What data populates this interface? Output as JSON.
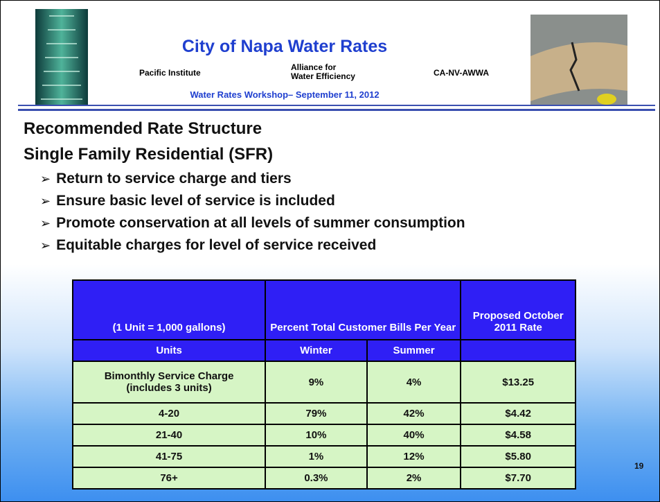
{
  "header": {
    "title": "City of Napa Water Rates",
    "left_org": "Pacific Institute",
    "middle_org": "Alliance for Water Efficiency",
    "right_org": "CA-NV-AWWA",
    "subtitle": "Water Rates Workshop– September 11, 2012"
  },
  "heading": [
    "Recommended Rate Structure",
    "Single Family Residential (SFR)"
  ],
  "bullets": [
    "Return to service charge and tiers",
    "Ensure basic level of service is included",
    "Promote conservation at all levels of summer consumption",
    "Equitable charges for level of service received"
  ],
  "table": {
    "columns": [
      "(1 Unit  = 1,000 gallons)",
      "Percent Total Customer  Bills Per Year",
      "Proposed October 2011 Rate"
    ],
    "subcolumns": [
      "Units",
      "Winter",
      "Summer"
    ],
    "rows": [
      [
        "Bimonthly Service Charge (includes 3 units)",
        "9%",
        "4%",
        "$13.25"
      ],
      [
        "4-20",
        "79%",
        "42%",
        "$4.42"
      ],
      [
        "21-40",
        "10%",
        "40%",
        "$4.58"
      ],
      [
        "41-75",
        "1%",
        "12%",
        "$5.80"
      ],
      [
        "76+",
        "0.3%",
        "2%",
        "$7.70"
      ]
    ]
  },
  "page_number": "19"
}
